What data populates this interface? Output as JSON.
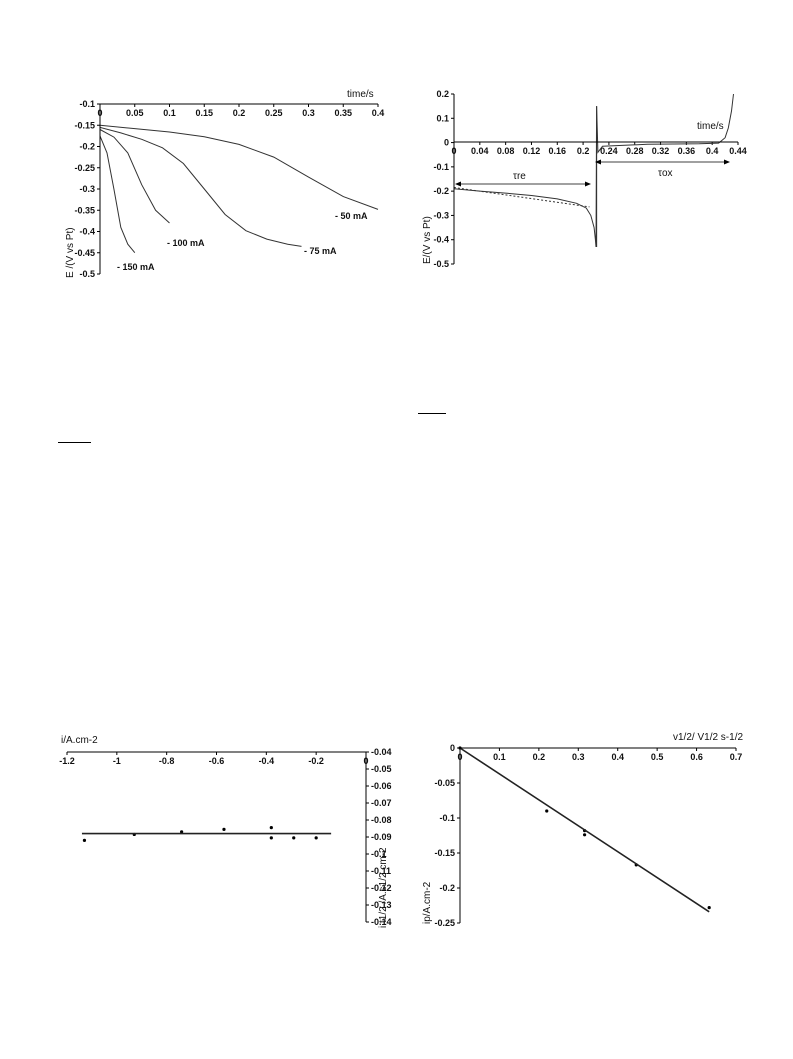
{
  "chart_data": [
    {
      "type": "line",
      "title": "",
      "xlabel": "time/s",
      "ylabel": "E /(V vs Pt)",
      "xlim": [
        0,
        0.4
      ],
      "ylim": [
        -0.5,
        -0.1
      ],
      "xticks": [
        "0",
        "0.05",
        "0.1",
        "0.15",
        "0.2",
        "0.25",
        "0.3",
        "0.35",
        "0.4"
      ],
      "yticks": [
        "-0.1",
        "-0.15",
        "-0.2",
        "-0.25",
        "-0.3",
        "-0.35",
        "-0.4",
        "-0.45",
        "-0.5"
      ],
      "series": [
        {
          "name": "- 50 mA",
          "x": [
            0,
            0.05,
            0.1,
            0.15,
            0.2,
            0.25,
            0.3,
            0.35,
            0.4
          ],
          "y": [
            -0.15,
            -0.158,
            -0.166,
            -0.177,
            -0.195,
            -0.225,
            -0.272,
            -0.318,
            -0.348
          ]
        },
        {
          "name": "- 75 mA",
          "x": [
            0,
            0.03,
            0.06,
            0.09,
            0.12,
            0.15,
            0.18,
            0.21,
            0.24,
            0.27,
            0.29
          ],
          "y": [
            -0.155,
            -0.168,
            -0.183,
            -0.203,
            -0.24,
            -0.3,
            -0.36,
            -0.398,
            -0.418,
            -0.43,
            -0.435
          ]
        },
        {
          "name": "- 100 mA",
          "x": [
            0,
            0.02,
            0.04,
            0.06,
            0.08,
            0.1
          ],
          "y": [
            -0.16,
            -0.178,
            -0.215,
            -0.29,
            -0.35,
            -0.38
          ]
        },
        {
          "name": "- 150 mA",
          "x": [
            0,
            0.01,
            0.02,
            0.03,
            0.04,
            0.05
          ],
          "y": [
            -0.175,
            -0.215,
            -0.3,
            -0.39,
            -0.43,
            -0.45
          ]
        }
      ]
    },
    {
      "type": "line",
      "title": "",
      "xlabel": "time/s",
      "ylabel": "E/(V vs Pt)",
      "xlim": [
        0,
        0.44
      ],
      "ylim": [
        -0.5,
        0.2
      ],
      "xticks": [
        "0",
        "0.04",
        "0.08",
        "0.12",
        "0.16",
        "0.2",
        "0.24",
        "0.28",
        "0.32",
        "0.36",
        "0.4",
        "0.44"
      ],
      "yticks": [
        "0.2",
        "0.1",
        "0",
        "-0.1",
        "-0.2",
        "-0.3",
        "-0.4",
        "-0.5"
      ],
      "annotations": [
        "τre",
        "τox"
      ],
      "series": [
        {
          "x": [
            0,
            0.04,
            0.08,
            0.12,
            0.16,
            0.19,
            0.205,
            0.212,
            0.217,
            0.219,
            0.22,
            0.221,
            0.223,
            0.23,
            0.3,
            0.38,
            0.41,
            0.42,
            0.425,
            0.43,
            0.433
          ],
          "y": [
            -0.19,
            -0.2,
            -0.208,
            -0.218,
            -0.232,
            -0.25,
            -0.27,
            -0.3,
            -0.35,
            -0.4,
            -0.43,
            0.15,
            -0.04,
            -0.015,
            -0.007,
            -0.005,
            -0.002,
            0.02,
            0.06,
            0.13,
            0.2
          ]
        },
        {
          "style": "dotted",
          "x": [
            0,
            0.21
          ],
          "y": [
            -0.185,
            -0.265
          ]
        }
      ]
    },
    {
      "type": "scatter",
      "title": "",
      "xlabel": "i/A.cm-2",
      "ylabel": "i.t1/2 /A.s1/2 cm-2",
      "xlim": [
        -1.2,
        0
      ],
      "ylim": [
        -0.14,
        -0.04
      ],
      "xticks": [
        "-1.2",
        "-1",
        "-0.8",
        "-0.6",
        "-0.4",
        "-0.2",
        "0"
      ],
      "yticks": [
        "-0.04",
        "-0.05",
        "-0.06",
        "-0.07",
        "-0.08",
        "-0.09",
        "-0.1",
        "-0.11",
        "-0.12",
        "-0.13",
        "-0.14"
      ],
      "series": [
        {
          "x": [
            -1.13,
            -0.93,
            -0.74,
            -0.57,
            -0.38,
            -0.38,
            -0.29,
            -0.2
          ],
          "y": [
            -0.092,
            -0.0885,
            -0.087,
            -0.0855,
            -0.0845,
            -0.0905,
            -0.0905,
            -0.0905
          ]
        },
        {
          "style": "fit-line",
          "x": [
            -1.14,
            -0.14
          ],
          "y": [
            -0.088,
            -0.088
          ]
        }
      ]
    },
    {
      "type": "scatter",
      "title": "",
      "xlabel": "v1/2/ V1/2 s-1/2",
      "ylabel": "ip/A.cm-2",
      "xlim": [
        0,
        0.7
      ],
      "ylim": [
        -0.25,
        0
      ],
      "xticks": [
        "0",
        "0.1",
        "0.2",
        "0.3",
        "0.4",
        "0.5",
        "0.6",
        "0.7"
      ],
      "yticks": [
        "0",
        "-0.05",
        "-0.1",
        "-0.15",
        "-0.2",
        "-0.25"
      ],
      "series": [
        {
          "x": [
            0,
            0.22,
            0.316,
            0.316,
            0.447,
            0.632
          ],
          "y": [
            0,
            -0.09,
            -0.118,
            -0.124,
            -0.167,
            -0.228
          ]
        },
        {
          "style": "fit-line",
          "x": [
            0,
            0.632
          ],
          "y": [
            0,
            -0.234
          ]
        }
      ]
    }
  ]
}
